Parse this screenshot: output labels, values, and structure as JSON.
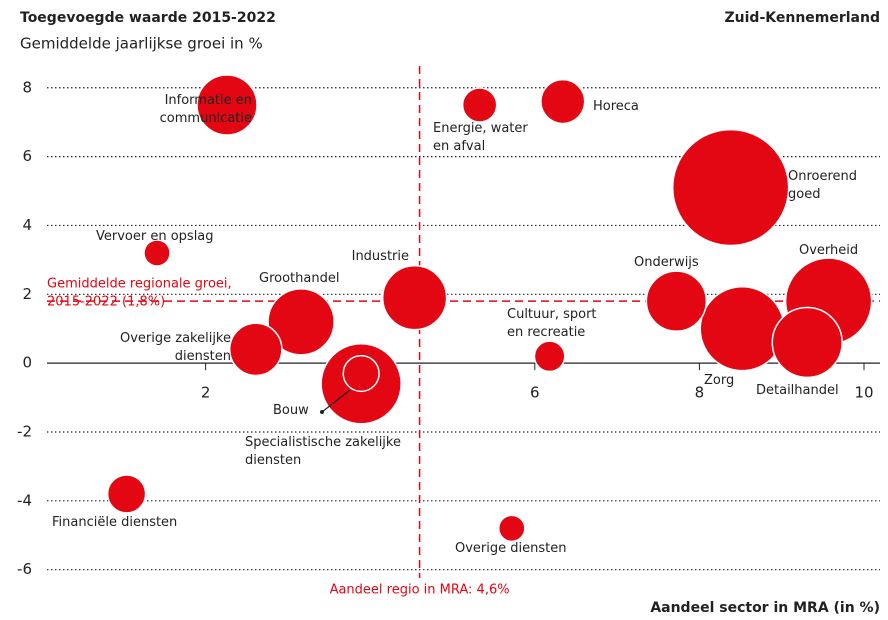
{
  "chart_data": {
    "type": "scatter",
    "title": "Toegevoegde waarde 2015-2022",
    "subtitle": "Gemiddelde jaarlijkse groei in %",
    "region": "Zuid-Kennemerland",
    "x_label": "Aandeel sector in MRA (in %)",
    "color": "#e30613",
    "xlim": [
      0,
      10.2
    ],
    "xticks": [
      2,
      6,
      8,
      10
    ],
    "ylim": [
      -6.3,
      8.4
    ],
    "yticks": [
      -6,
      -4,
      -2,
      0,
      2,
      4,
      6,
      8
    ],
    "grid": true,
    "reference_x": {
      "value": 4.6,
      "label": "Aandeel regio in MRA: 4,6%"
    },
    "reference_y": {
      "value": 1.8,
      "label": [
        "Gemiddelde regionale groei,",
        "2015-2022 (1,8%)"
      ]
    },
    "points": [
      {
        "name": [
          "Onroerend",
          "goed"
        ],
        "x": 8.38,
        "y": 5.1,
        "size": 33.6
      },
      {
        "name": [
          "Overheid"
        ],
        "x": 9.57,
        "y": 1.8,
        "size": 18.5
      },
      {
        "name": [
          "Zorg"
        ],
        "x": 8.52,
        "y": 1.0,
        "size": 17.6
      },
      {
        "name": [
          "Detailhandel"
        ],
        "x": 9.31,
        "y": 0.6,
        "size": 12.2
      },
      {
        "name": [
          "Onderwijs"
        ],
        "x": 7.72,
        "y": 1.8,
        "size": 9
      },
      {
        "name": [
          "Informatie en",
          "communicatie"
        ],
        "x": 2.26,
        "y": 7.5,
        "size": 9
      },
      {
        "name": [
          "Energie, water",
          "en afval"
        ],
        "x": 5.33,
        "y": 7.5,
        "size": 2.9
      },
      {
        "name": [
          "Horeca"
        ],
        "x": 6.34,
        "y": 7.6,
        "size": 4.8
      },
      {
        "name": [
          "Vervoer en opslag"
        ],
        "x": 1.41,
        "y": 3.2,
        "size": 1.7
      },
      {
        "name": [
          "Industrie"
        ],
        "x": 4.54,
        "y": 1.9,
        "size": 10.2
      },
      {
        "name": [
          "Groothandel"
        ],
        "x": 3.16,
        "y": 1.2,
        "size": 10.9
      },
      {
        "name": [
          "Overige zakelijke",
          "diensten"
        ],
        "x": 2.61,
        "y": 0.4,
        "size": 6.8
      },
      {
        "name": [
          "Specialistische zakelijke",
          "diensten"
        ],
        "x": 3.89,
        "y": -0.6,
        "size": 16
      },
      {
        "name": [
          "Bouw"
        ],
        "x": 3.89,
        "y": -0.3,
        "size": 3.2
      },
      {
        "name": [
          "Cultuur, sport",
          "en recreatie"
        ],
        "x": 6.18,
        "y": 0.2,
        "size": 2.3
      },
      {
        "name": [
          "Financiële diensten"
        ],
        "x": 1.04,
        "y": -3.8,
        "size": 3.6
      },
      {
        "name": [
          "Overige diensten"
        ],
        "x": 5.72,
        "y": -4.8,
        "size": 1.7
      }
    ]
  }
}
